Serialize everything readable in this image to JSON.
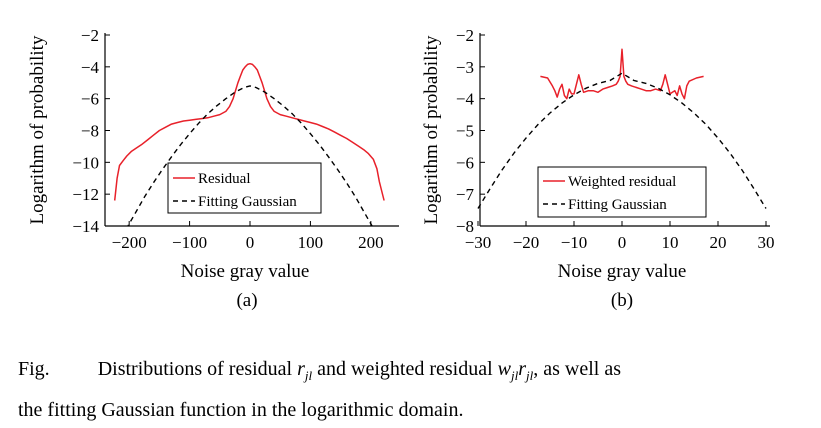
{
  "chart_data": [
    {
      "type": "line",
      "panel_label": "(a)",
      "xlabel": "Noise gray value",
      "ylabel": "Logarithm of probability",
      "xlim": [
        -240,
        240
      ],
      "ylim": [
        -14,
        -2
      ],
      "xticks": [
        -200,
        -100,
        0,
        100,
        200
      ],
      "xtick_labels": [
        "−200",
        "−100",
        "0",
        "100",
        "200"
      ],
      "yticks": [
        -2,
        -4,
        -6,
        -8,
        -10,
        -12,
        -14
      ],
      "ytick_labels": [
        "−2",
        "−4",
        "−6",
        "−8",
        "−10",
        "−12",
        "−14"
      ],
      "legend_position": "bottom-right",
      "series": [
        {
          "name": "Residual",
          "style": "solid",
          "color": "#e8212a",
          "x": [
            -224,
            -220,
            -216,
            -210,
            -204,
            -196,
            -188,
            -180,
            -170,
            -160,
            -150,
            -140,
            -130,
            -120,
            -110,
            -100,
            -90,
            -80,
            -70,
            -60,
            -50,
            -40,
            -34,
            -28,
            -24,
            -20,
            -16,
            -12,
            -8,
            -4,
            0,
            4,
            8,
            12,
            16,
            20,
            24,
            28,
            34,
            40,
            50,
            60,
            70,
            80,
            90,
            100,
            110,
            120,
            130,
            140,
            150,
            160,
            170,
            180,
            188,
            196,
            204,
            210,
            214,
            218,
            222
          ],
          "y": [
            -12.4,
            -11.0,
            -10.2,
            -9.9,
            -9.6,
            -9.3,
            -9.1,
            -8.9,
            -8.6,
            -8.3,
            -8.0,
            -7.8,
            -7.6,
            -7.5,
            -7.4,
            -7.35,
            -7.3,
            -7.25,
            -7.2,
            -7.1,
            -7.0,
            -6.8,
            -6.5,
            -6.0,
            -5.5,
            -5.0,
            -4.6,
            -4.2,
            -4.0,
            -3.85,
            -3.8,
            -3.85,
            -4.0,
            -4.2,
            -4.6,
            -5.0,
            -5.5,
            -6.0,
            -6.5,
            -6.8,
            -7.0,
            -7.1,
            -7.2,
            -7.3,
            -7.4,
            -7.5,
            -7.6,
            -7.75,
            -7.9,
            -8.1,
            -8.3,
            -8.5,
            -8.75,
            -9.0,
            -9.2,
            -9.45,
            -9.8,
            -10.4,
            -11.2,
            -11.8,
            -12.4
          ]
        },
        {
          "name": "Fitting Gaussian",
          "style": "dashed",
          "color": "#000000",
          "x": [
            -205,
            -190,
            -175,
            -160,
            -145,
            -130,
            -115,
            -100,
            -85,
            -70,
            -55,
            -40,
            -25,
            -10,
            0,
            10,
            25,
            40,
            55,
            70,
            85,
            100,
            115,
            130,
            145,
            160,
            175,
            190,
            205
          ],
          "y": [
            -14.2,
            -13.2,
            -12.2,
            -11.3,
            -10.45,
            -9.65,
            -8.9,
            -8.2,
            -7.55,
            -6.95,
            -6.45,
            -6.0,
            -5.6,
            -5.3,
            -5.2,
            -5.3,
            -5.6,
            -6.0,
            -6.45,
            -6.95,
            -7.55,
            -8.2,
            -8.9,
            -9.65,
            -10.45,
            -11.3,
            -12.2,
            -13.2,
            -14.2
          ]
        }
      ]
    },
    {
      "type": "line",
      "panel_label": "(b)",
      "xlabel": "Noise gray value",
      "ylabel": "Logarithm of probability",
      "xlim": [
        -30,
        30
      ],
      "ylim": [
        -8,
        -2
      ],
      "xticks": [
        -30,
        -20,
        -10,
        0,
        10,
        20,
        30
      ],
      "xtick_labels": [
        "−30",
        "−20",
        "−10",
        "0",
        "10",
        "20",
        "30"
      ],
      "yticks": [
        -2,
        -3,
        -4,
        -5,
        -6,
        -7,
        -8
      ],
      "ytick_labels": [
        "−2",
        "−3",
        "−4",
        "−5",
        "−6",
        "−7",
        "−8"
      ],
      "legend_position": "bottom-right",
      "series": [
        {
          "name": "Weighted residual",
          "style": "solid",
          "color": "#e8212a",
          "x": [
            -17,
            -15.5,
            -14.5,
            -14,
            -13.5,
            -13,
            -12.5,
            -12,
            -11.5,
            -11,
            -10.5,
            -10,
            -9.5,
            -9,
            -8.5,
            -8,
            -7,
            -6,
            -5,
            -4,
            -3,
            -2,
            -1.2,
            -0.8,
            -0.4,
            0,
            0.4,
            0.8,
            1.2,
            2,
            3,
            4,
            5,
            6,
            7,
            8,
            8.5,
            9,
            9.5,
            10,
            10.5,
            11,
            11.5,
            12,
            12.5,
            13,
            13.5,
            14,
            15.5,
            17
          ],
          "y": [
            -3.3,
            -3.35,
            -3.6,
            -3.75,
            -3.95,
            -3.7,
            -3.55,
            -3.9,
            -4.0,
            -3.7,
            -3.85,
            -3.85,
            -3.55,
            -3.25,
            -3.55,
            -3.8,
            -3.75,
            -3.75,
            -3.8,
            -3.7,
            -3.65,
            -3.6,
            -3.55,
            -3.45,
            -3.3,
            -2.45,
            -3.3,
            -3.45,
            -3.55,
            -3.6,
            -3.65,
            -3.7,
            -3.75,
            -3.75,
            -3.7,
            -3.75,
            -3.55,
            -3.25,
            -3.55,
            -3.85,
            -3.8,
            -3.75,
            -3.9,
            -3.6,
            -3.85,
            -4.0,
            -3.6,
            -3.45,
            -3.35,
            -3.3
          ]
        },
        {
          "name": "Fitting Gaussian",
          "style": "dashed",
          "color": "#000000",
          "x": [
            -30,
            -27.5,
            -25,
            -22.5,
            -20,
            -17.5,
            -15,
            -12.5,
            -10,
            -7.5,
            -5,
            -2.5,
            0,
            2.5,
            5,
            7.5,
            10,
            12.5,
            15,
            17.5,
            20,
            22.5,
            25,
            27.5,
            30
          ],
          "y": [
            -7.45,
            -6.83,
            -6.24,
            -5.71,
            -5.24,
            -4.81,
            -4.45,
            -4.14,
            -3.88,
            -3.67,
            -3.52,
            -3.43,
            -3.2,
            -3.43,
            -3.52,
            -3.67,
            -3.88,
            -4.14,
            -4.45,
            -4.81,
            -5.24,
            -5.71,
            -6.24,
            -6.83,
            -7.45
          ]
        }
      ]
    }
  ],
  "caption": {
    "fig_label": "Fig.",
    "text_1": "Distributions of residual",
    "sym_r": "r",
    "sub_jl_1": "jl",
    "text_2": "and weighted residual",
    "sym_w": "w",
    "sub_jl_2": "jl",
    "sym_r2": "r",
    "sub_jl_3": "jl",
    "text_3": ", as well as",
    "text_4": "the fitting Gaussian function in the logarithmic domain."
  }
}
